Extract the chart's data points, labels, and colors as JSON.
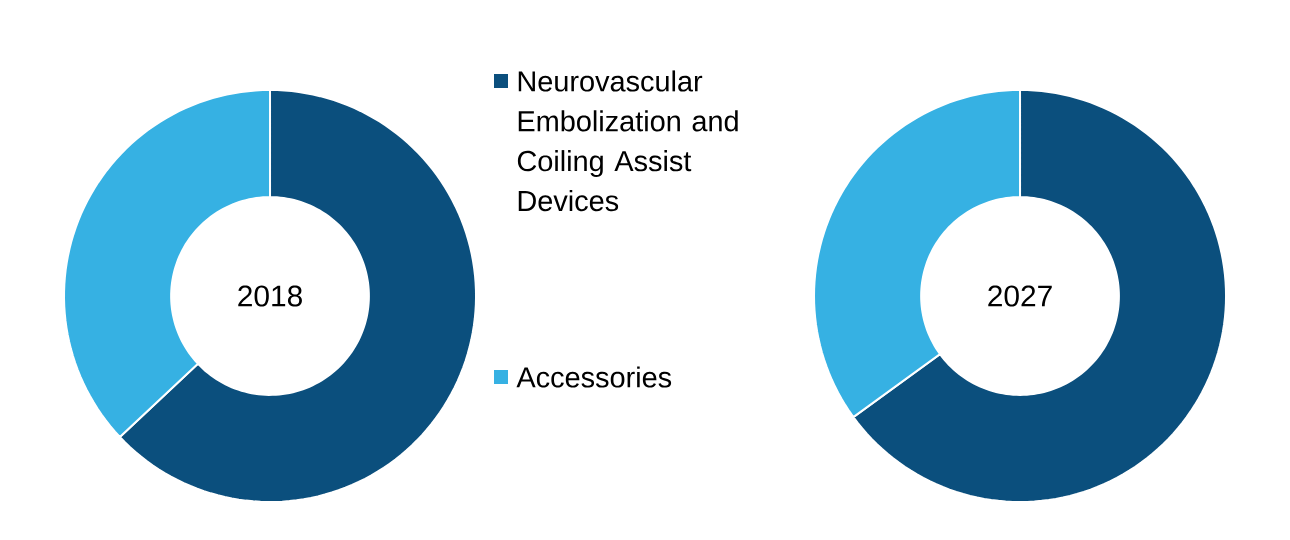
{
  "chart_data": [
    {
      "type": "donut",
      "title": "2018",
      "categories": [
        "Neurovascular Embolization and Coiling Assist Devices",
        "Accessories"
      ],
      "values": [
        63,
        37
      ],
      "colors": [
        "#0b4f7d",
        "#36b1e3"
      ],
      "legend": "right"
    },
    {
      "type": "donut",
      "title": "2027",
      "values": [
        65,
        35
      ],
      "colors": [
        "#0b4f7d",
        "#36b1e3"
      ]
    }
  ]
}
